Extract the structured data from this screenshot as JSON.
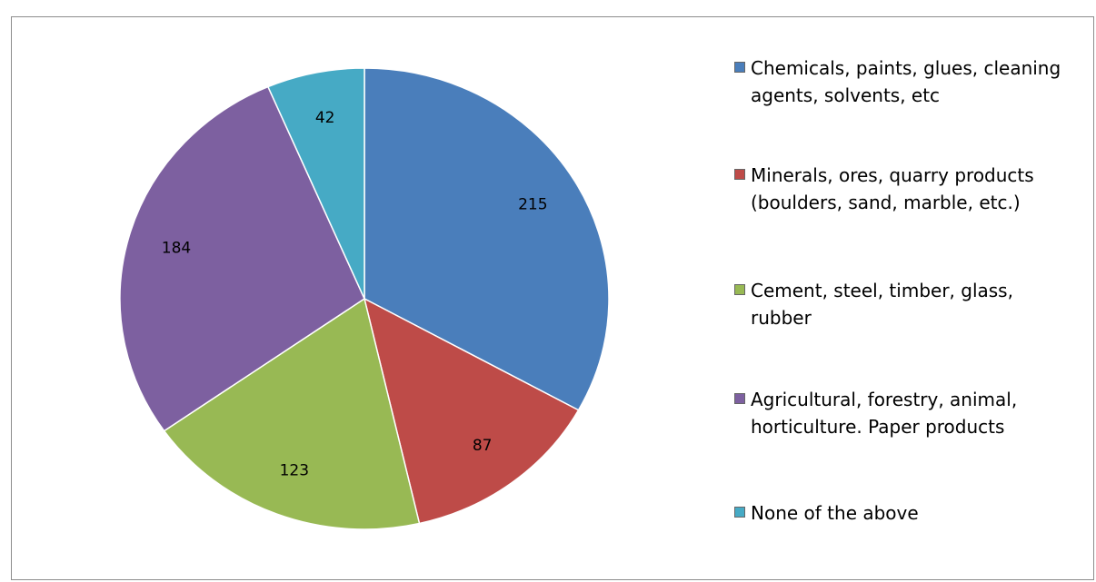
{
  "chart_data": {
    "type": "pie",
    "categories": [
      "Chemicals, paints, glues, cleaning agents, solvents, etc",
      "Minerals, ores, quarry products (boulders, sand, marble, etc.)",
      "Cement, steel, timber, glass, rubber",
      "Agricultural, forestry, animal, horticulture. Paper products",
      "None of the above"
    ],
    "values": [
      215,
      87,
      123,
      184,
      42
    ],
    "colors": [
      "#4a7ebb",
      "#be4b48",
      "#98b954",
      "#7d60a0",
      "#46aac5"
    ],
    "legend": "right"
  }
}
